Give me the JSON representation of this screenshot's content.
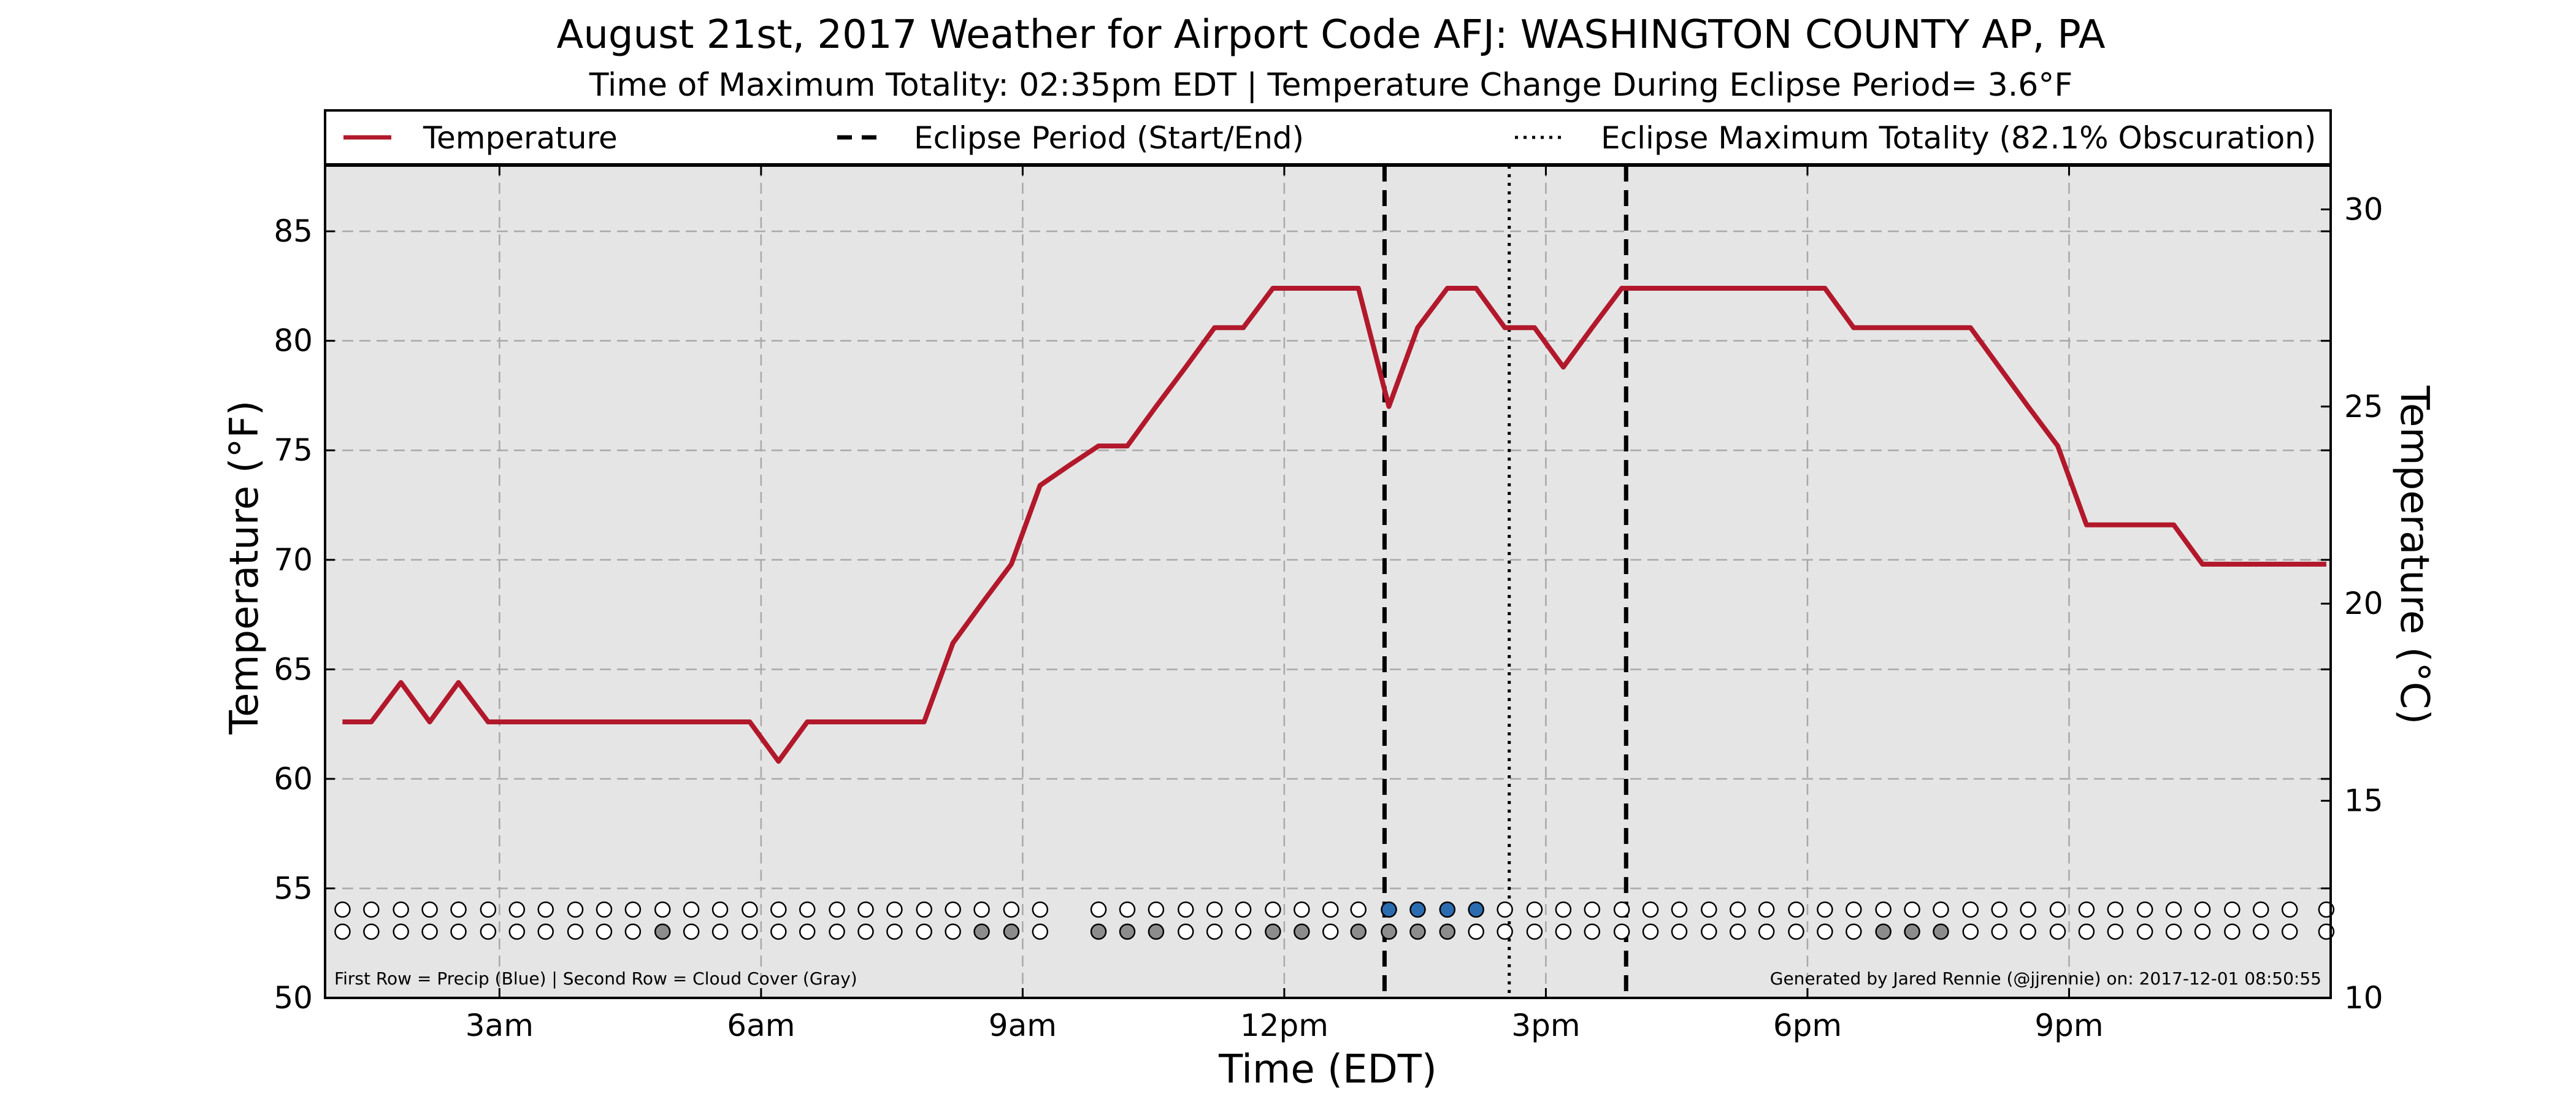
{
  "chart_data": {
    "type": "line",
    "title": "August 21st, 2017 Weather for Airport Code AFJ: WASHINGTON COUNTY AP, PA",
    "subtitle": "Time of Maximum Totality: 02:35pm EDT | Temperature Change During Eclipse Period= 3.6°F",
    "xlabel": "Time (EDT)",
    "ylabel": "Temperature (°F)",
    "ylabel_right": "Temperature (°C)",
    "x_range_hours": [
      1.0,
      24.0
    ],
    "ylim": [
      50,
      88
    ],
    "ylim_right_celsius": [
      10,
      31.11
    ],
    "x_ticks": [
      {
        "hour": 3,
        "label": "3am"
      },
      {
        "hour": 6,
        "label": "6am"
      },
      {
        "hour": 9,
        "label": "9am"
      },
      {
        "hour": 12,
        "label": "12pm"
      },
      {
        "hour": 15,
        "label": "3pm"
      },
      {
        "hour": 18,
        "label": "6pm"
      },
      {
        "hour": 21,
        "label": "9pm"
      }
    ],
    "y_ticks": [
      50,
      55,
      60,
      65,
      70,
      75,
      80,
      85
    ],
    "y_ticks_right": [
      10,
      15,
      20,
      25,
      30
    ],
    "grid": true,
    "legend_position": "top",
    "legend": [
      {
        "label": "Temperature",
        "style": "solid",
        "color": "#b2182b"
      },
      {
        "label": "Eclipse Period (Start/End)",
        "style": "dashed",
        "color": "#000000"
      },
      {
        "label": "Eclipse Maximum Totality (82.1% Obscuration)",
        "style": "dotted",
        "color": "#000000"
      }
    ],
    "eclipse_start_hour": 13.15,
    "eclipse_max_hour": 14.58,
    "eclipse_end_hour": 15.92,
    "series": [
      {
        "name": "Temperature",
        "color": "#b2182b",
        "x": [
          1.2,
          1.53,
          1.87,
          2.2,
          2.53,
          2.87,
          3.2,
          3.53,
          3.87,
          4.2,
          4.53,
          4.87,
          5.2,
          5.53,
          5.87,
          6.2,
          6.53,
          6.87,
          7.2,
          7.53,
          7.87,
          8.2,
          8.53,
          8.87,
          9.2,
          9.53,
          9.87,
          10.2,
          10.53,
          10.87,
          11.2,
          11.53,
          11.87,
          12.2,
          12.53,
          12.85,
          13.2,
          13.53,
          13.87,
          14.2,
          14.53,
          14.87,
          15.2,
          15.53,
          15.87,
          16.2,
          16.53,
          16.87,
          17.2,
          17.53,
          17.87,
          18.2,
          18.53,
          18.87,
          19.2,
          19.53,
          19.87,
          20.2,
          20.53,
          20.87,
          21.2,
          21.53,
          21.87,
          22.2,
          22.53,
          22.87,
          23.2,
          23.53,
          23.95
        ],
        "values": [
          62.6,
          62.6,
          64.4,
          62.6,
          64.4,
          62.6,
          62.6,
          62.6,
          62.6,
          62.6,
          62.6,
          62.6,
          62.6,
          62.6,
          62.6,
          60.8,
          62.6,
          62.6,
          62.6,
          62.6,
          62.6,
          66.2,
          68.0,
          69.8,
          73.4,
          74.3,
          75.2,
          75.2,
          77.0,
          78.8,
          80.6,
          80.6,
          82.4,
          82.4,
          82.4,
          82.4,
          77.0,
          80.6,
          82.4,
          82.4,
          80.6,
          80.6,
          78.8,
          80.6,
          82.4,
          82.4,
          82.4,
          82.4,
          82.4,
          82.4,
          82.4,
          82.4,
          80.6,
          80.6,
          80.6,
          80.6,
          80.6,
          78.8,
          77.0,
          75.2,
          71.6,
          71.6,
          71.6,
          71.6,
          69.8,
          69.8,
          69.8,
          69.8,
          69.8
        ]
      }
    ],
    "observation_rows": {
      "precip_row_label": "Precip",
      "cloud_row_label": "Cloud Cover",
      "x": [
        1.2,
        1.53,
        1.87,
        2.2,
        2.53,
        2.87,
        3.2,
        3.53,
        3.87,
        4.2,
        4.53,
        4.87,
        5.2,
        5.53,
        5.87,
        6.2,
        6.53,
        6.87,
        7.2,
        7.53,
        7.87,
        8.2,
        8.53,
        8.87,
        9.2,
        9.87,
        10.2,
        10.53,
        10.87,
        11.2,
        11.53,
        11.87,
        12.2,
        12.53,
        12.85,
        13.2,
        13.53,
        13.87,
        14.2,
        14.53,
        14.87,
        15.2,
        15.53,
        15.87,
        16.2,
        16.53,
        16.87,
        17.2,
        17.53,
        17.87,
        18.2,
        18.53,
        18.87,
        19.2,
        19.53,
        19.87,
        20.2,
        20.53,
        20.87,
        21.2,
        21.53,
        21.87,
        22.2,
        22.53,
        22.87,
        23.2,
        23.53,
        23.95
      ],
      "precip": [
        0,
        0,
        0,
        0,
        0,
        0,
        0,
        0,
        0,
        0,
        0,
        0,
        0,
        0,
        0,
        0,
        0,
        0,
        0,
        0,
        0,
        0,
        0,
        0,
        0,
        0,
        0,
        0,
        0,
        0,
        0,
        0,
        0,
        0,
        0,
        1,
        1,
        1,
        1,
        0,
        0,
        0,
        0,
        0,
        0,
        0,
        0,
        0,
        0,
        0,
        0,
        0,
        0,
        0,
        0,
        0,
        0,
        0,
        0,
        0,
        0,
        0,
        0,
        0,
        0,
        0,
        0,
        0
      ],
      "cloud": [
        0,
        0,
        0,
        0,
        0,
        0,
        0,
        0,
        0,
        0,
        0,
        1,
        0,
        0,
        0,
        0,
        0,
        0,
        0,
        0,
        0,
        0,
        1,
        1,
        0,
        1,
        1,
        1,
        0,
        0,
        0,
        1,
        1,
        0,
        1,
        1,
        1,
        1,
        0,
        0,
        0,
        0,
        0,
        0,
        0,
        0,
        0,
        0,
        0,
        0,
        0,
        0,
        1,
        1,
        1,
        0,
        0,
        0,
        0,
        0,
        0,
        0,
        0,
        0,
        0,
        0,
        0,
        0
      ]
    },
    "footer_left": "First Row = Precip (Blue) | Second Row = Cloud Cover (Gray)",
    "footer_right": "Generated by Jared Rennie (@jjrennie) on: 2017-12-01 08:50:55"
  }
}
